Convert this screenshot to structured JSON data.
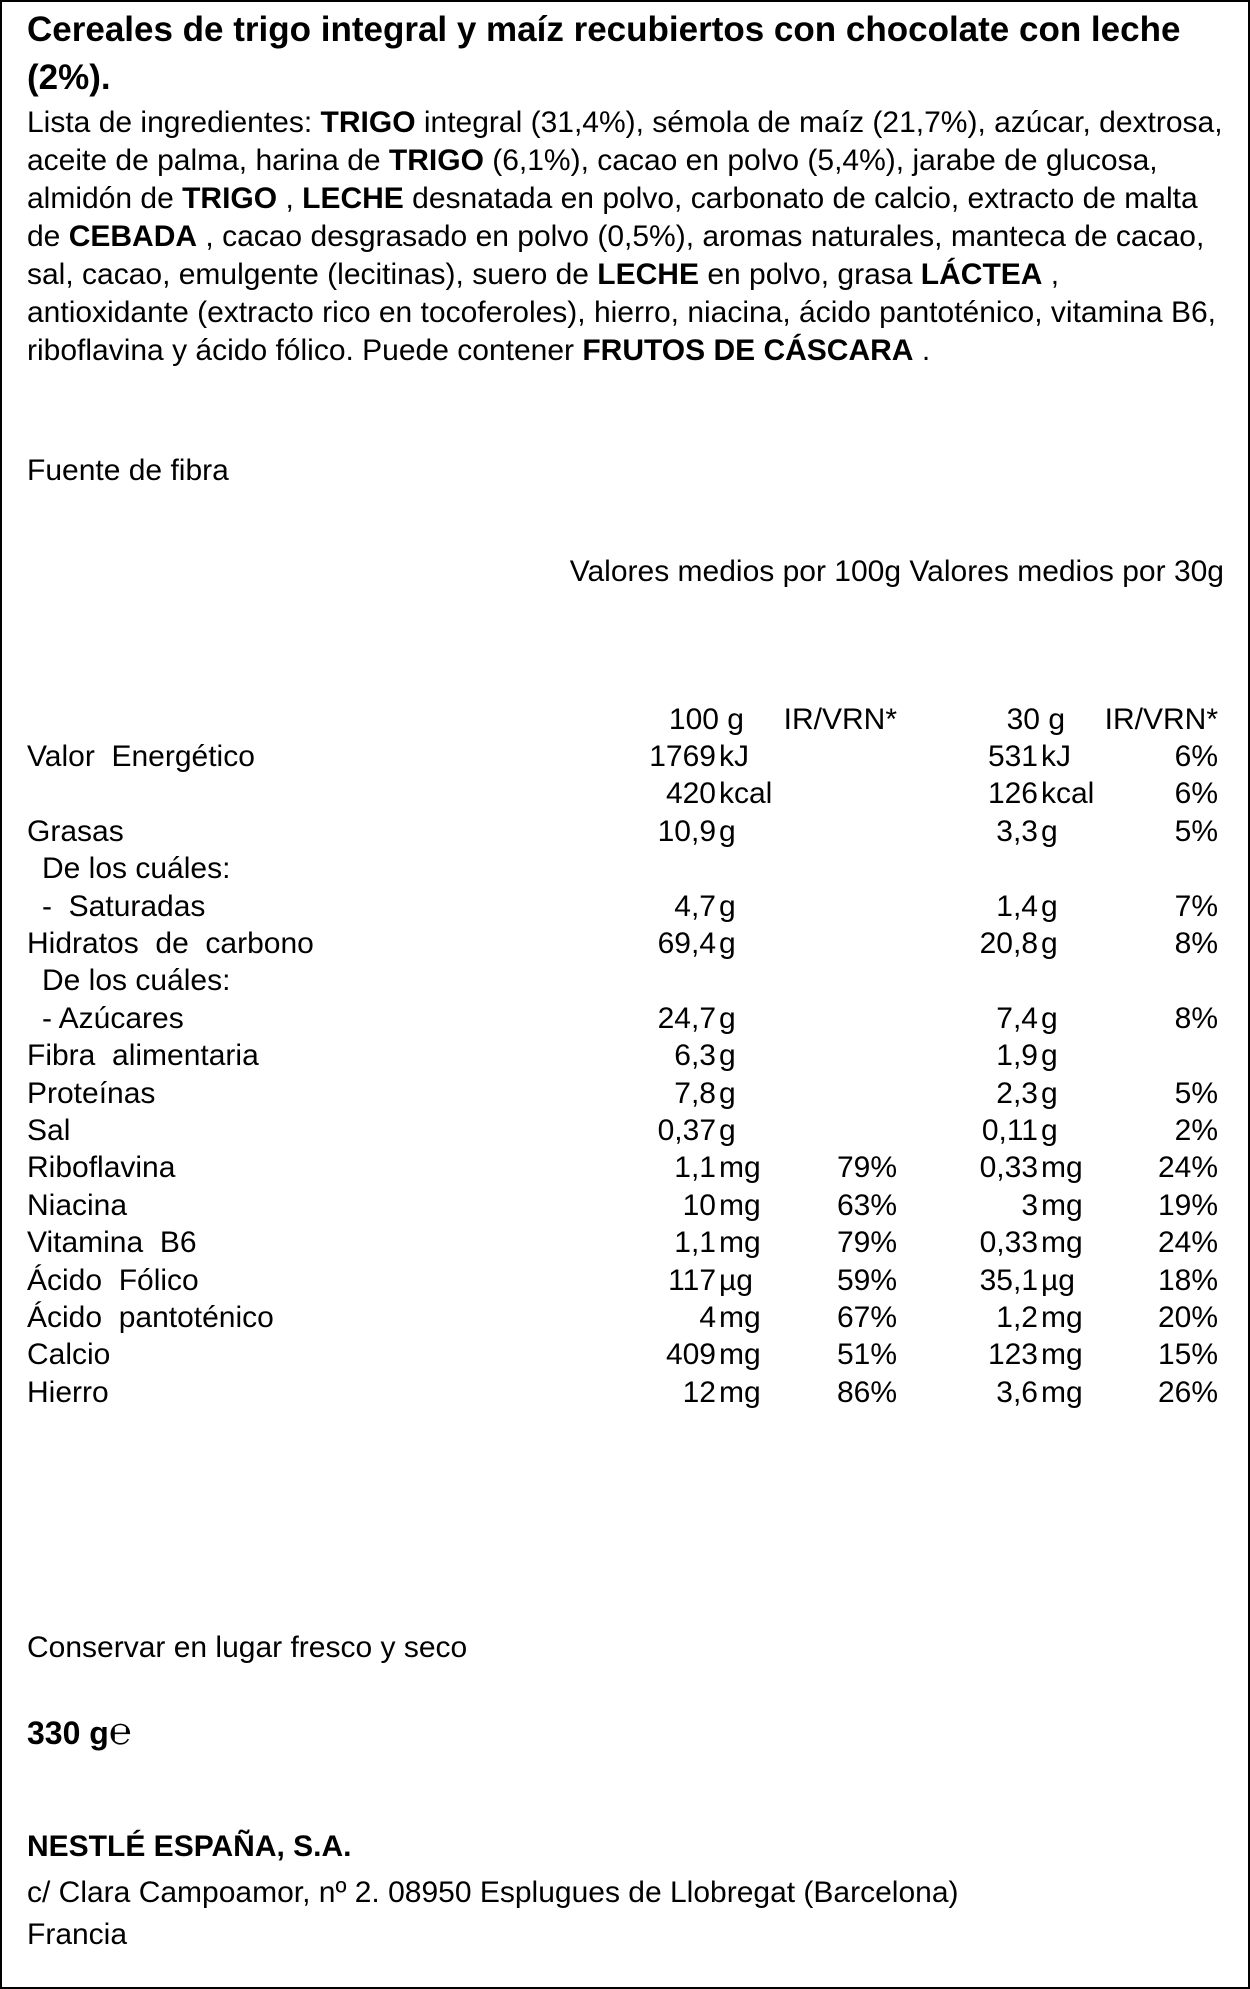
{
  "title": "Cereales de trigo integral y maíz recubiertos con chocolate con leche (2%).",
  "ingredients": [
    {
      "text": "Lista de ingredientes: ",
      "bold": false
    },
    {
      "text": "TRIGO",
      "bold": true
    },
    {
      "text": " integral (31,4%), sémola de maíz (21,7%), azúcar, dextrosa, aceite de palma, harina de ",
      "bold": false
    },
    {
      "text": "TRIGO",
      "bold": true
    },
    {
      "text": " (6,1%), cacao en polvo (5,4%), jarabe de glucosa, almidón de ",
      "bold": false
    },
    {
      "text": "TRIGO",
      "bold": true
    },
    {
      "text": " , ",
      "bold": false
    },
    {
      "text": "LECHE",
      "bold": true
    },
    {
      "text": " desnatada en polvo, carbonato de calcio, extracto de malta de ",
      "bold": false
    },
    {
      "text": "CEBADA",
      "bold": true
    },
    {
      "text": " , cacao desgrasado en polvo (0,5%), aromas naturales, manteca de cacao, sal, cacao, emulgente (lecitinas), suero de ",
      "bold": false
    },
    {
      "text": "LECHE",
      "bold": true
    },
    {
      "text": " en polvo, grasa ",
      "bold": false
    },
    {
      "text": "LÁCTEA",
      "bold": true
    },
    {
      "text": " , antioxidante (extracto rico en tocoferoles), hierro, niacina, ácido pantoténico, vitamina B6, riboflavina y ácido fólico. Puede contener ",
      "bold": false
    },
    {
      "text": "FRUTOS DE CÁSCARA",
      "bold": true
    },
    {
      "text": " .",
      "bold": false
    }
  ],
  "claim": "Fuente de fibra",
  "header_100": "Valores medios por 100g",
  "header_30": "Valores medios por 30g",
  "nutrition": {
    "columns": [
      "100 g",
      "IR/VRN*",
      "30 g",
      "IR/VRN*"
    ],
    "rows": [
      {
        "name": "Valor  Energético",
        "sub": false,
        "cells": [
          "1769",
          "kJ",
          null,
          "531",
          "kJ",
          "6%"
        ]
      },
      {
        "name": null,
        "sub": false,
        "cells": [
          "420",
          "kcal",
          null,
          "126",
          "kcal",
          "6%"
        ]
      },
      {
        "name": "Grasas",
        "sub": false,
        "cells": [
          "10,9",
          "g",
          null,
          "3,3",
          "g",
          "5%"
        ]
      },
      {
        "name": "De los cuáles:",
        "sub": true,
        "cells": [
          null,
          null,
          null,
          null,
          null,
          null
        ]
      },
      {
        "name": "-  Saturadas",
        "sub": true,
        "cells": [
          "4,7",
          "g",
          null,
          "1,4",
          "g",
          "7%"
        ]
      },
      {
        "name": "Hidratos  de  carbono",
        "sub": false,
        "cells": [
          "69,4",
          "g",
          null,
          "20,8",
          "g",
          "8%"
        ]
      },
      {
        "name": "De los cuáles:",
        "sub": true,
        "cells": [
          null,
          null,
          null,
          null,
          null,
          null
        ]
      },
      {
        "name": "- Azúcares",
        "sub": true,
        "cells": [
          "24,7",
          "g",
          null,
          "7,4",
          "g",
          "8%"
        ]
      },
      {
        "name": "Fibra  alimentaria",
        "sub": false,
        "cells": [
          "6,3",
          "g",
          null,
          "1,9",
          "g",
          null
        ]
      },
      {
        "name": "Proteínas",
        "sub": false,
        "cells": [
          "7,8",
          "g",
          null,
          "2,3",
          "g",
          "5%"
        ]
      },
      {
        "name": "Sal",
        "sub": false,
        "cells": [
          "0,37",
          "g",
          null,
          "0,11",
          "g",
          "2%"
        ]
      },
      {
        "name": "Riboflavina",
        "sub": false,
        "cells": [
          "1,1",
          "mg",
          "79%",
          "0,33",
          "mg",
          "24%"
        ]
      },
      {
        "name": "Niacina",
        "sub": false,
        "cells": [
          "10",
          "mg",
          "63%",
          "3",
          "mg",
          "19%"
        ]
      },
      {
        "name": "Vitamina  B6",
        "sub": false,
        "cells": [
          "1,1",
          "mg",
          "79%",
          "0,33",
          "mg",
          "24%"
        ]
      },
      {
        "name": "Ácido  Fólico",
        "sub": false,
        "cells": [
          "117",
          "µg",
          "59%",
          "35,1",
          "µg",
          "18%"
        ]
      },
      {
        "name": "Ácido  pantoténico",
        "sub": false,
        "cells": [
          "4",
          "mg",
          "67%",
          "1,2",
          "mg",
          "20%"
        ]
      },
      {
        "name": "Calcio",
        "sub": false,
        "cells": [
          "409",
          "mg",
          "51%",
          "123",
          "mg",
          "15%"
        ]
      },
      {
        "name": "Hierro",
        "sub": false,
        "cells": [
          "12",
          "mg",
          "86%",
          "3,6",
          "mg",
          "26%"
        ]
      }
    ]
  },
  "storage": "Conservar en lugar fresco y seco",
  "net_weight": "330 g",
  "estimated_sign": "℮",
  "company": {
    "name": "NESTLÉ ESPAÑA, S.A.",
    "address": "c/ Clara Campoamor, nº 2. 08950 Esplugues de Llobregat (Barcelona)",
    "country": "Francia"
  }
}
